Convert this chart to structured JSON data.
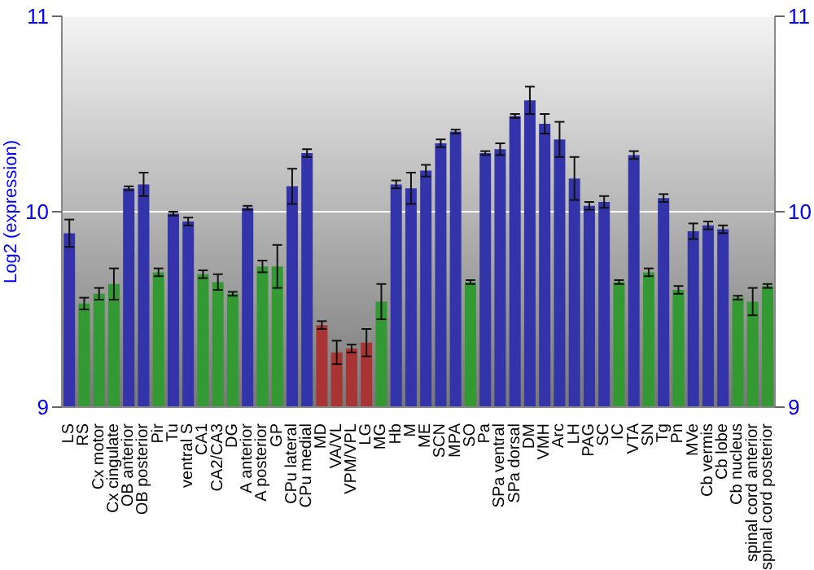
{
  "chart_data": {
    "type": "bar",
    "ylabel": "Log2 (expression)",
    "categories": [
      "LS",
      "RS",
      "Cx motor",
      "Cx cingulate",
      "OB anterior",
      "OB posterior",
      "Pir",
      "Tu",
      "ventral S",
      "CA1",
      "CA2/CA3",
      "DG",
      "A anterior",
      "A posterior",
      "GP",
      "CPu lateral",
      "CPu medial",
      "MD",
      "VA/VL",
      "VPM/VPL",
      "LG",
      "MG",
      "Hb",
      "M",
      "ME",
      "SCN",
      "MPA",
      "SO",
      "Pa",
      "SPa ventral",
      "SPa dorsal",
      "DM",
      "VMH",
      "Arc",
      "LH",
      "PAG",
      "SC",
      "IC",
      "VTA",
      "SN",
      "Tg",
      "Pn",
      "MVe",
      "Cb vermis",
      "Cb lobe",
      "Cb nucleus",
      "spinal cord anterior",
      "spinal cord posterior"
    ],
    "values": [
      9.89,
      9.53,
      9.58,
      9.63,
      10.12,
      10.14,
      9.69,
      9.99,
      9.95,
      9.68,
      9.64,
      9.58,
      10.02,
      9.72,
      9.72,
      10.13,
      10.3,
      9.42,
      9.28,
      9.3,
      9.33,
      9.54,
      10.14,
      10.12,
      10.21,
      10.35,
      10.41,
      9.64,
      10.3,
      10.32,
      10.49,
      10.57,
      10.45,
      10.37,
      10.17,
      10.03,
      10.05,
      9.64,
      10.29,
      9.69,
      10.07,
      9.6,
      9.9,
      9.93,
      9.91,
      9.56,
      9.54,
      9.62
    ],
    "errors": [
      0.07,
      0.03,
      0.03,
      0.08,
      0.01,
      0.06,
      0.02,
      0.01,
      0.02,
      0.02,
      0.04,
      0.01,
      0.01,
      0.03,
      0.11,
      0.09,
      0.02,
      0.02,
      0.06,
      0.02,
      0.07,
      0.09,
      0.02,
      0.08,
      0.03,
      0.02,
      0.01,
      0.01,
      0.01,
      0.03,
      0.01,
      0.07,
      0.05,
      0.09,
      0.11,
      0.02,
      0.03,
      0.01,
      0.02,
      0.02,
      0.02,
      0.02,
      0.04,
      0.02,
      0.02,
      0.01,
      0.07,
      0.01
    ],
    "colors": [
      "#3333aa",
      "#339933",
      "#339933",
      "#339933",
      "#3333aa",
      "#3333aa",
      "#339933",
      "#3333aa",
      "#3333aa",
      "#339933",
      "#339933",
      "#339933",
      "#3333aa",
      "#339933",
      "#339933",
      "#3333aa",
      "#3333aa",
      "#aa3333",
      "#aa3333",
      "#aa3333",
      "#aa3333",
      "#339933",
      "#3333aa",
      "#3333aa",
      "#3333aa",
      "#3333aa",
      "#3333aa",
      "#339933",
      "#3333aa",
      "#3333aa",
      "#3333aa",
      "#3333aa",
      "#3333aa",
      "#3333aa",
      "#3333aa",
      "#3333aa",
      "#3333aa",
      "#339933",
      "#3333aa",
      "#339933",
      "#3333aa",
      "#339933",
      "#3333aa",
      "#3333aa",
      "#3333aa",
      "#339933",
      "#339933",
      "#339933"
    ],
    "ylim": [
      9,
      11
    ],
    "yticks": [
      9,
      10,
      11
    ],
    "y2lim": [
      9,
      11
    ],
    "y2ticks": [
      9,
      10,
      11
    ],
    "grid": "y"
  }
}
